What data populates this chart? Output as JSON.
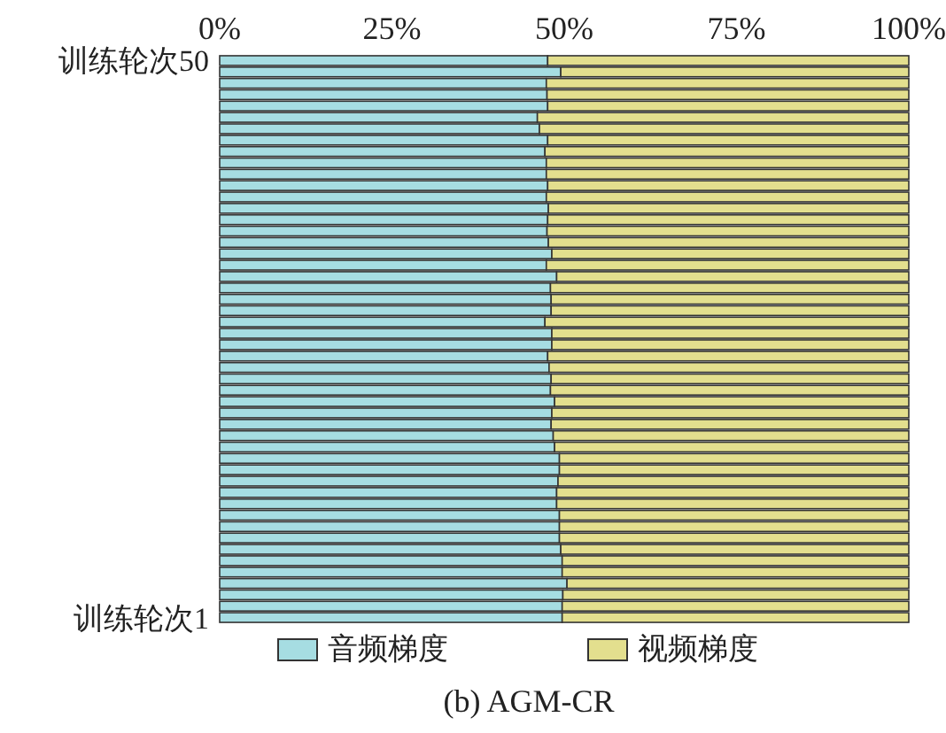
{
  "chart_data": {
    "type": "bar",
    "title": "(b) AGM-CR",
    "orientation": "horizontal",
    "stacked": true,
    "legend": "bottom",
    "categories": [
      "训练轮次50",
      null,
      null,
      null,
      null,
      null,
      null,
      null,
      null,
      null,
      null,
      null,
      null,
      null,
      null,
      null,
      null,
      null,
      null,
      null,
      null,
      null,
      null,
      null,
      null,
      null,
      null,
      null,
      null,
      null,
      null,
      null,
      null,
      null,
      null,
      null,
      null,
      null,
      null,
      null,
      null,
      null,
      null,
      null,
      null,
      null,
      null,
      null,
      null,
      "训练轮次1"
    ],
    "xlim": [
      0,
      100
    ],
    "xticks": [
      {
        "value": 0,
        "label": "0%"
      },
      {
        "value": 25,
        "label": "25%"
      },
      {
        "value": 50,
        "label": "50%"
      },
      {
        "value": 75,
        "label": "75%"
      },
      {
        "value": 100,
        "label": "100%"
      }
    ],
    "series": [
      {
        "name": "音频梯度",
        "color": "#a6dde2",
        "values": [
          47.6,
          49.5,
          47.4,
          47.5,
          47.6,
          46.1,
          46.4,
          47.6,
          47.2,
          47.4,
          47.4,
          47.6,
          47.4,
          47.7,
          47.6,
          47.5,
          47.7,
          48.2,
          47.4,
          48.9,
          48.0,
          48.1,
          48.1,
          47.2,
          48.2,
          48.2,
          47.6,
          47.8,
          48.1,
          48.0,
          48.6,
          48.2,
          48.1,
          48.4,
          48.6,
          49.3,
          49.3,
          49.1,
          48.9,
          48.9,
          49.3,
          49.3,
          49.3,
          49.5,
          49.7,
          49.7,
          50.4,
          49.8,
          49.7,
          49.7
        ]
      },
      {
        "name": "视频梯度",
        "color": "#e3df8e",
        "values": [
          52.4,
          50.5,
          52.6,
          52.5,
          52.4,
          53.9,
          53.6,
          52.4,
          52.8,
          52.6,
          52.6,
          52.4,
          52.6,
          52.3,
          52.4,
          52.5,
          52.3,
          51.8,
          52.6,
          51.1,
          52.0,
          51.9,
          51.9,
          52.8,
          51.8,
          51.8,
          52.4,
          52.2,
          51.9,
          52.0,
          51.4,
          51.8,
          51.9,
          51.6,
          51.4,
          50.7,
          50.7,
          50.9,
          51.1,
          51.1,
          50.7,
          50.7,
          50.7,
          50.5,
          50.3,
          50.3,
          49.6,
          50.2,
          50.3,
          50.3
        ]
      }
    ]
  }
}
